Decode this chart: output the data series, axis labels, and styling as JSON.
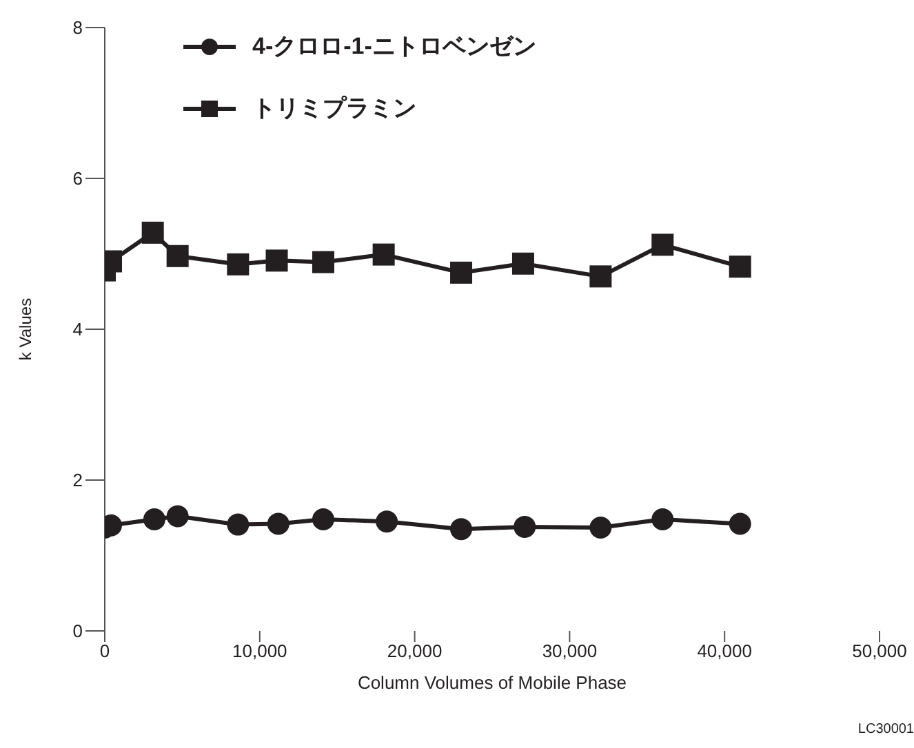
{
  "chart_data": {
    "type": "line",
    "xlabel": "Column Volumes of Mobile Phase",
    "ylabel": "k Values",
    "xlim": [
      0,
      50000
    ],
    "xticks": [
      {
        "value": 0,
        "label": "0"
      },
      {
        "value": 10000,
        "label": "10,000"
      },
      {
        "value": 20000,
        "label": "20,000"
      },
      {
        "value": 30000,
        "label": "30,000"
      },
      {
        "value": 40000,
        "label": "40,000"
      },
      {
        "value": 50000,
        "label": "50,000"
      }
    ],
    "ylim": [
      0,
      8
    ],
    "yticks": [
      0,
      2,
      4,
      6,
      8
    ],
    "grid": false,
    "legend": "top left",
    "line_style": "solid",
    "annotations": [
      "LC30001"
    ],
    "series": [
      {
        "name": "4-クロロ-1-ニトロベンゼン",
        "color": "#231f20",
        "marker": "circle",
        "x": [
          0,
          400,
          3200,
          4700,
          8600,
          11200,
          14100,
          18200,
          23000,
          27100,
          32000,
          36000,
          41000
        ],
        "values": [
          1.37,
          1.4,
          1.48,
          1.52,
          1.41,
          1.42,
          1.48,
          1.45,
          1.35,
          1.38,
          1.37,
          1.48,
          1.42
        ]
      },
      {
        "name": "トリミプラミン",
        "color": "#231f20",
        "marker": "square",
        "x": [
          0,
          400,
          3100,
          4700,
          8600,
          11100,
          14100,
          18000,
          23000,
          27000,
          32000,
          36000,
          41000
        ],
        "values": [
          4.78,
          4.9,
          5.28,
          4.97,
          4.86,
          4.91,
          4.89,
          4.99,
          4.75,
          4.87,
          4.7,
          5.12,
          4.83
        ]
      }
    ]
  }
}
